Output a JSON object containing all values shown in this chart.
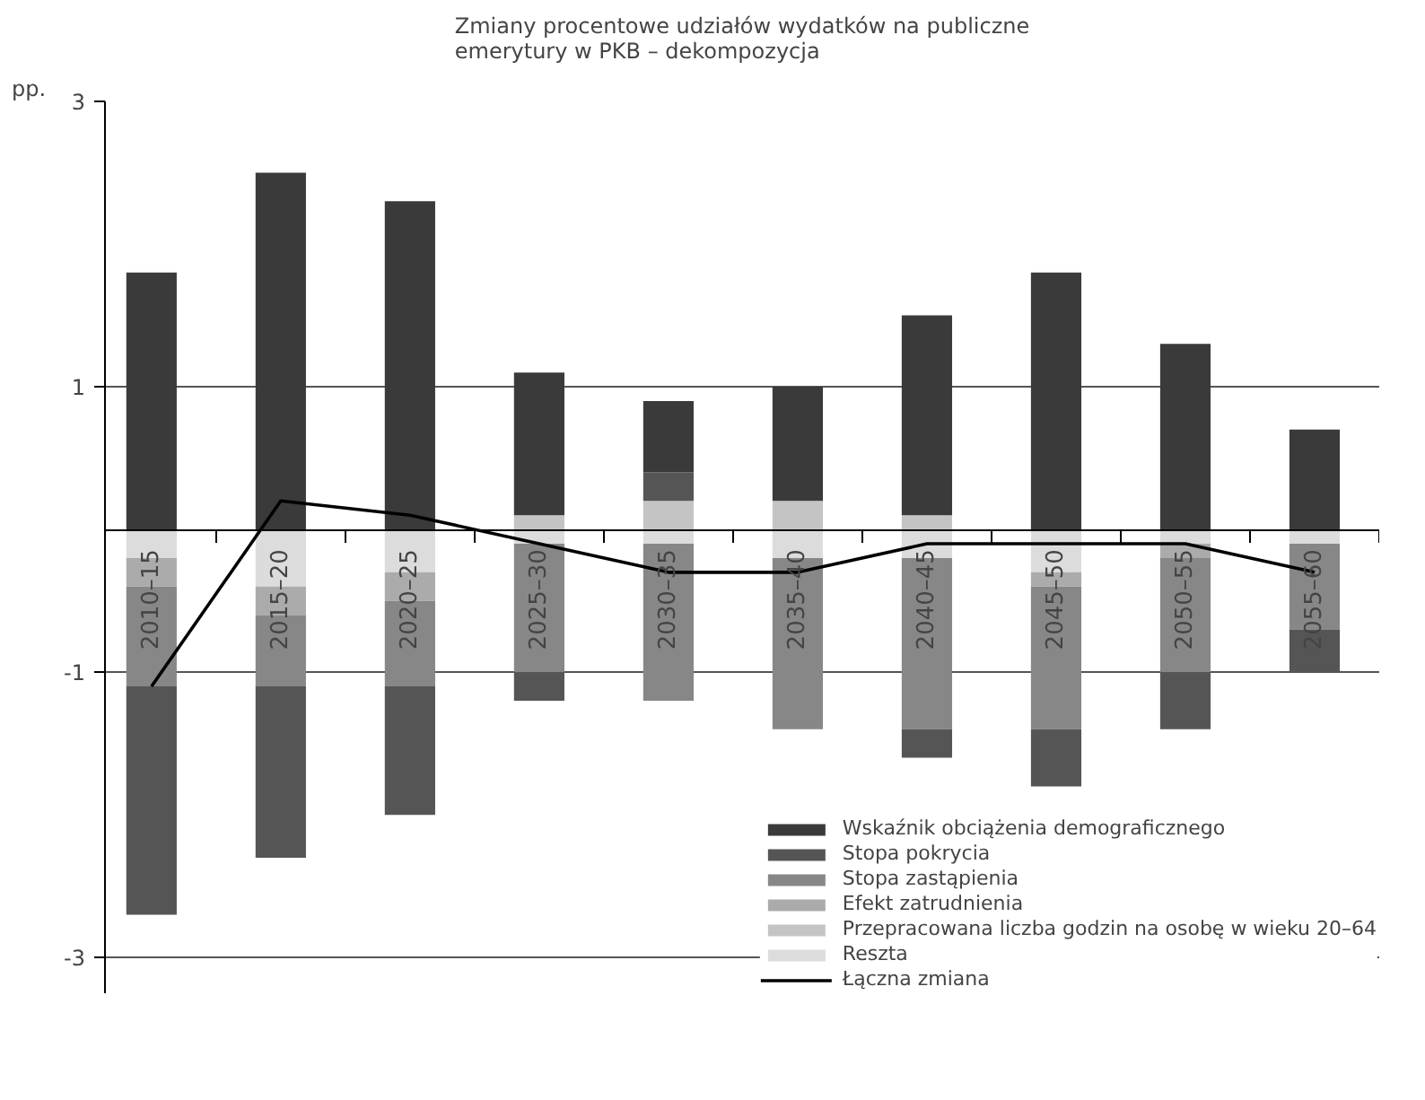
{
  "chart_data": {
    "type": "bar",
    "stacked": true,
    "title": "Zmiany procentowe udziałów wydatków na publiczne\nemerytury w PKB – dekompozycja",
    "ylabel": "pp.",
    "categories": [
      "2010–15",
      "2015–20",
      "2020–25",
      "2025–30",
      "2030–35",
      "2035–40",
      "2040–45",
      "2045–50",
      "2050–55",
      "2055–60"
    ],
    "ylim": [
      -3.25,
      3
    ],
    "yticks": [
      -3,
      -1,
      1,
      3
    ],
    "grid": "y",
    "legend": "bottom right",
    "series": [
      {
        "name": "Reszta",
        "color": "#dcdcdc",
        "values": [
          -0.2,
          -0.4,
          -0.3,
          -0.1,
          -0.1,
          -0.2,
          -0.2,
          -0.3,
          -0.1,
          -0.1
        ]
      },
      {
        "name": "Przepracowana liczba godzin na osobę w wieku 20–64",
        "color": "#c4c4c4",
        "values": [
          0,
          0,
          0,
          0.1,
          0.2,
          0.2,
          0.1,
          0,
          0,
          0
        ]
      },
      {
        "name": "Efekt zatrudnienia",
        "color": "#ababab",
        "values": [
          -0.2,
          -0.2,
          -0.2,
          0,
          0,
          0,
          0,
          -0.1,
          -0.1,
          0
        ]
      },
      {
        "name": "Stopa zastąpienia",
        "color": "#878787",
        "values": [
          -0.7,
          -0.5,
          -0.6,
          -0.9,
          -1.1,
          -1.2,
          -1.2,
          -1.0,
          -0.8,
          -0.6
        ]
      },
      {
        "name": "Stopa pokrycia",
        "color": "#555555",
        "values": [
          -1.6,
          -1.2,
          -0.9,
          -0.2,
          0.2,
          0,
          -0.2,
          -0.4,
          -0.4,
          -0.3
        ]
      },
      {
        "name": "Wskaźnik obciążenia demograficznego",
        "color": "#3a3a3a",
        "values": [
          1.8,
          2.5,
          2.3,
          1.0,
          0.5,
          0.8,
          1.4,
          1.8,
          1.3,
          0.7
        ]
      },
      {
        "name": "Łączna zmiana",
        "type": "line",
        "color": "#000000",
        "values": [
          -1.1,
          0.2,
          0.1,
          -0.1,
          -0.3,
          -0.3,
          -0.1,
          -0.1,
          -0.1,
          -0.3
        ]
      }
    ]
  }
}
